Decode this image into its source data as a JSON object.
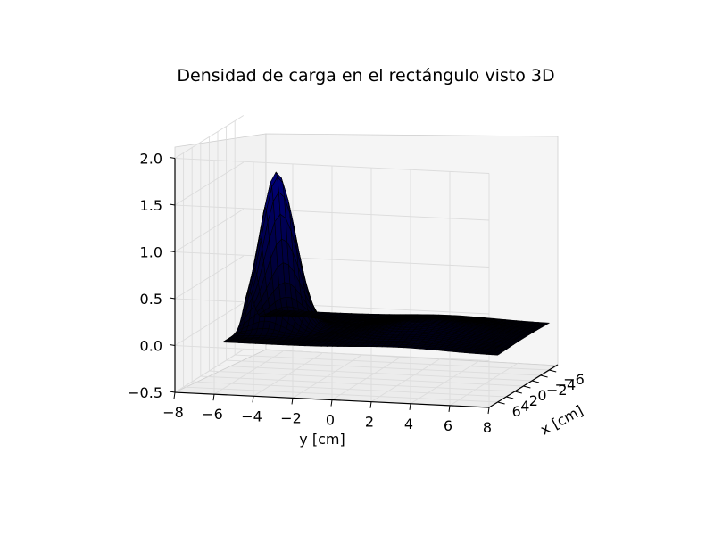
{
  "chart_data": {
    "type": "surface3d",
    "title": "Densidad de carga en el rectángulo visto 3D",
    "xlabel": "x [cm]",
    "ylabel": "y [cm]",
    "zlabel": "",
    "xlim": [
      -8,
      8
    ],
    "ylim": [
      -8,
      8
    ],
    "zlim": [
      -0.5,
      2.0
    ],
    "x_ticks": [
      -6,
      -4,
      -2,
      0,
      2,
      4,
      6
    ],
    "x_tick_labels": [
      "−6",
      "−4",
      "−2",
      "0",
      "2",
      "4",
      "6"
    ],
    "y_ticks": [
      -8,
      -6,
      -4,
      -2,
      0,
      2,
      4,
      6,
      8
    ],
    "y_tick_labels": [
      "−8",
      "−6",
      "−4",
      "−2",
      "0",
      "2",
      "4",
      "6",
      "8"
    ],
    "z_ticks": [
      -0.5,
      0.0,
      0.5,
      1.0,
      1.5,
      2.0
    ],
    "z_tick_labels": [
      "−0.5",
      "0.0",
      "0.5",
      "1.0",
      "1.5",
      "2.0"
    ],
    "grid": true,
    "surface_color": "#000080",
    "edge_color": "#000000",
    "features": [
      {
        "kind": "peak",
        "x": 0,
        "y": -4.5,
        "z": 1.75
      },
      {
        "kind": "dip",
        "x": 0,
        "y": -4.2,
        "z": -0.12
      },
      {
        "kind": "bump",
        "x": 0,
        "y": 3.0,
        "z": 0.15
      }
    ],
    "surface_extent": {
      "x": [
        -6,
        6
      ],
      "y": [
        -6,
        8
      ]
    }
  }
}
